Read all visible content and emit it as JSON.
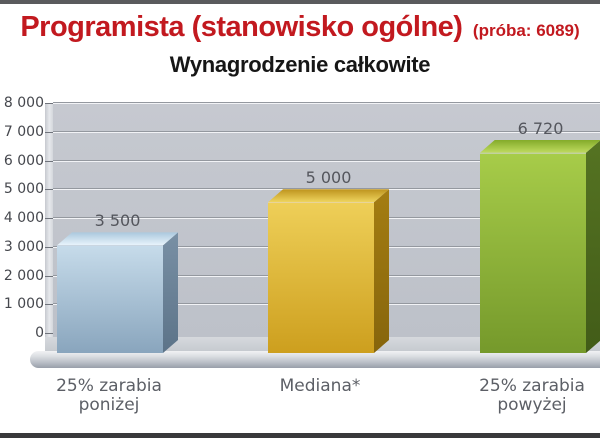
{
  "page": {
    "top_strip_color": "#5a5b5d",
    "bottom_strip_color": "#39393b",
    "background_color": "#ffffff"
  },
  "header": {
    "title": "Programista (stanowisko ogólne)",
    "sample": "(próba: 6089)",
    "subtitle": "Wynagrodzenie całkowite",
    "title_color": "#c2191f",
    "subtitle_color": "#161616"
  },
  "chart_data": {
    "type": "bar",
    "style": "3d",
    "title": "Wynagrodzenie całkowite",
    "xlabel": "",
    "ylabel": "",
    "ylim": [
      0,
      8000
    ],
    "ytick_step": 1000,
    "ytick_labels": [
      "0",
      "1 000",
      "2 000",
      "3 000",
      "4 000",
      "5 000",
      "6 000",
      "7 000",
      "8 000"
    ],
    "grid": true,
    "legend": false,
    "categories": [
      "25% zarabia poniżej",
      "Mediana*",
      "25% zarabia powyżej"
    ],
    "values": [
      3500,
      5000,
      6720
    ],
    "value_labels": [
      "3 500",
      "5 000",
      "6 720"
    ],
    "bar_colors": [
      {
        "name": "blue",
        "front_top": "#c6dbea",
        "front_bottom": "#89a5bd",
        "top_back": "#a9c7dd",
        "top_front": "#e7f3fb",
        "side_top": "#7990a5",
        "side_bottom": "#5c7388"
      },
      {
        "name": "gold",
        "front_top": "#eecf58",
        "front_bottom": "#cd9f1e",
        "top_back": "#bd921c",
        "top_front": "#eed45e",
        "side_top": "#a47d12",
        "side_bottom": "#86650c"
      },
      {
        "name": "green",
        "front_top": "#a7cc49",
        "front_bottom": "#75992b",
        "top_back": "#83ab2a",
        "top_front": "#c0dc60",
        "side_top": "#557322",
        "side_bottom": "#425c18"
      }
    ],
    "label_colors": {
      "ytick": "#45474d",
      "value": "#54565d",
      "category": "#5c5f66"
    }
  }
}
